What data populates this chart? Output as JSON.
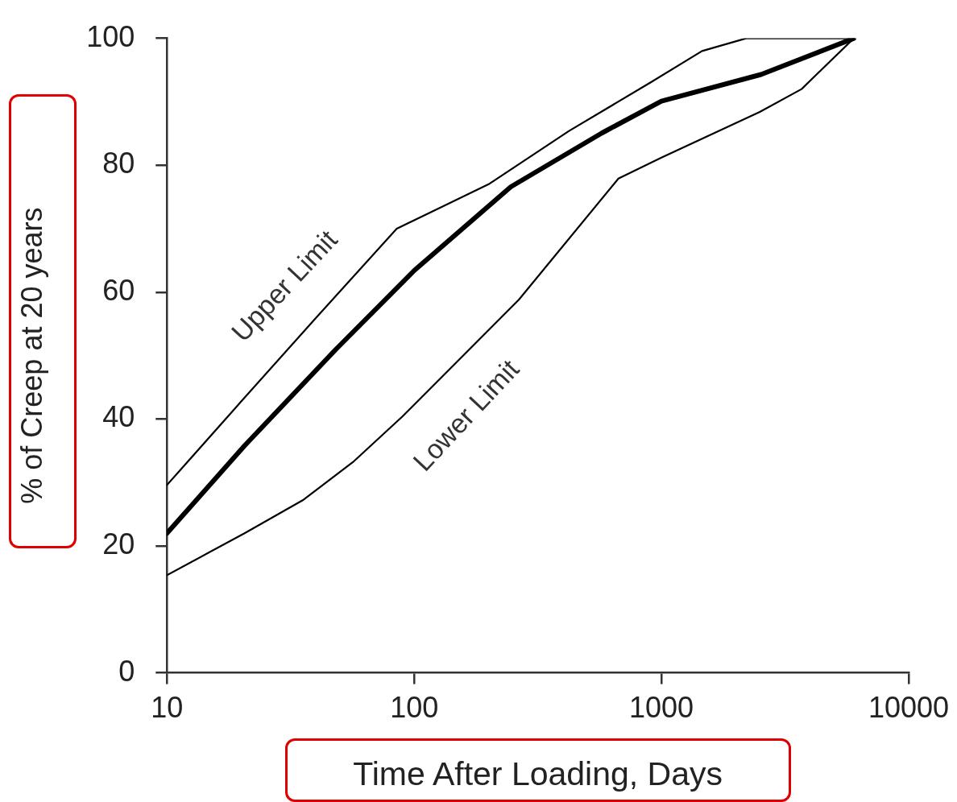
{
  "chart_data": {
    "type": "line",
    "xlabel": "Time After Loading, Days",
    "ylabel": "% of Creep at 20 years",
    "log": "x",
    "xlim": [
      10,
      10000
    ],
    "xticks": [
      10,
      100,
      1000,
      10000
    ],
    "ylim": [
      0,
      100
    ],
    "yticks": [
      0,
      20,
      40,
      60,
      80,
      100
    ],
    "grid": false,
    "legend": false,
    "marker": "none",
    "line_style": "solid",
    "series": [
      {
        "color": "#000000",
        "x": [
          10,
          20,
          40,
          85,
          200,
          423,
          900,
          1460,
          2200,
          6000
        ],
        "values": [
          29.6,
          42.8,
          55.9,
          70,
          77,
          85.4,
          93,
          98,
          100,
          100
        ]
      },
      {
        "color": "#000000",
        "x": [
          10,
          20.6,
          48,
          100,
          246,
          576,
          1000,
          2530,
          6000
        ],
        "values": [
          22,
          35.8,
          50.9,
          63.4,
          76.6,
          85.1,
          90.1,
          94.3,
          100
        ]
      },
      {
        "color": "#000000",
        "x": [
          10,
          20.6,
          35.4,
          56.5,
          89.6,
          265,
          670,
          1000,
          2500,
          3690,
          6000
        ],
        "values": [
          15.4,
          22,
          27.2,
          33.2,
          40.4,
          58.8,
          77.9,
          81.2,
          88.4,
          92,
          100
        ]
      }
    ],
    "annotations": [
      "Upper Limit",
      "Lower Limit"
    ]
  }
}
